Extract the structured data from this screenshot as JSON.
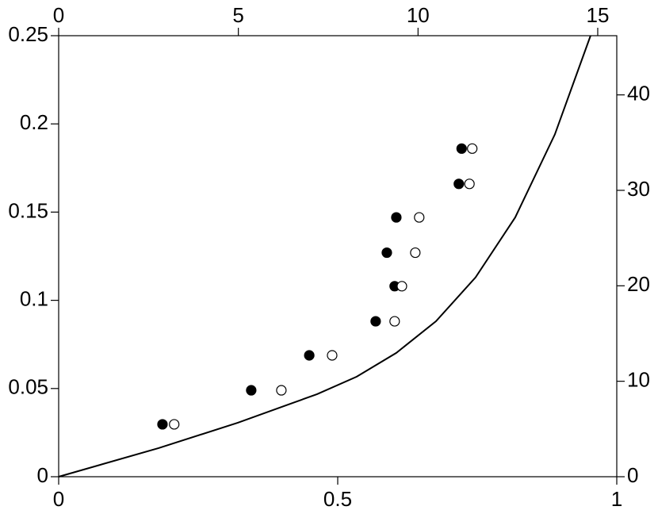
{
  "chart_data": {
    "type": "scatter",
    "xlim": [
      0,
      1
    ],
    "xticks": [
      0,
      0.5,
      1
    ],
    "x2lim": [
      0,
      15.53
    ],
    "x2ticks": [
      0,
      5,
      10,
      15
    ],
    "ylim": [
      0,
      0.25
    ],
    "yticks": [
      0,
      0.05,
      0.1,
      0.15,
      0.2,
      0.25
    ],
    "y2lim": [
      0,
      46.2
    ],
    "y2ticks": [
      0,
      10,
      20,
      30,
      40
    ],
    "series": [
      {
        "style": "line",
        "color": "#000000",
        "x": [
          0,
          0.179,
          0.321,
          0.463,
          0.534,
          0.605,
          0.676,
          0.747,
          0.818,
          0.889,
          0.953
        ],
        "values": [
          0,
          0.0162,
          0.0306,
          0.0468,
          0.0567,
          0.0702,
          0.0881,
          0.113,
          0.147,
          0.194,
          0.25
        ]
      },
      {
        "style": "filled",
        "color": "#000000",
        "x": [
          0.186,
          0.345,
          0.449,
          0.568,
          0.602,
          0.588,
          0.605,
          0.717,
          0.722
        ],
        "values": [
          0.0297,
          0.049,
          0.0688,
          0.0881,
          0.108,
          0.127,
          0.147,
          0.166,
          0.186
        ]
      },
      {
        "style": "open",
        "color": "#000000",
        "x": [
          0.207,
          0.399,
          0.49,
          0.602,
          0.615,
          0.639,
          0.646,
          0.736,
          0.741
        ],
        "values": [
          0.0297,
          0.049,
          0.0688,
          0.0881,
          0.108,
          0.127,
          0.147,
          0.166,
          0.186
        ]
      }
    ]
  }
}
